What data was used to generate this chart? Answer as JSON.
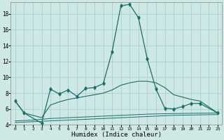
{
  "xlabel": "Humidex (Indice chaleur)",
  "background_color": "#cde8e5",
  "grid_color": "#aacfcc",
  "line_color": "#1a6e66",
  "x": [
    0,
    1,
    2,
    3,
    4,
    5,
    6,
    7,
    8,
    9,
    10,
    11,
    12,
    13,
    14,
    15,
    16,
    17,
    18,
    19,
    20,
    21,
    22,
    23
  ],
  "series1": [
    7.0,
    5.5,
    null,
    4.2,
    8.5,
    7.9,
    8.4,
    7.6,
    8.6,
    8.7,
    9.2,
    13.2,
    19.0,
    19.2,
    17.5,
    12.3,
    8.5,
    6.1,
    6.0,
    6.3,
    6.7,
    6.7,
    null,
    5.5
  ],
  "series2_x": [
    0,
    1,
    3,
    4,
    5,
    6,
    7,
    8,
    9,
    10,
    11,
    12,
    13,
    14,
    15,
    16,
    17,
    18,
    19,
    20,
    21,
    23
  ],
  "series2_y": [
    7.0,
    5.5,
    4.9,
    6.5,
    6.9,
    7.2,
    7.4,
    7.6,
    7.8,
    8.0,
    8.4,
    9.0,
    9.3,
    9.5,
    9.5,
    9.3,
    8.7,
    7.8,
    7.5,
    7.2,
    7.0,
    5.5
  ],
  "series3": [
    4.5,
    4.55,
    4.6,
    4.7,
    4.8,
    4.85,
    4.9,
    4.95,
    5.0,
    5.05,
    5.1,
    5.15,
    5.2,
    5.25,
    5.3,
    5.35,
    5.38,
    5.4,
    5.42,
    5.44,
    5.46,
    5.47,
    5.48,
    5.5
  ],
  "series4": [
    4.3,
    4.35,
    4.4,
    4.45,
    4.5,
    4.55,
    4.6,
    4.65,
    4.7,
    4.75,
    4.8,
    4.85,
    4.9,
    4.95,
    5.0,
    5.05,
    5.1,
    5.15,
    5.2,
    5.22,
    5.24,
    5.26,
    5.28,
    5.3
  ],
  "ylim": [
    4,
    19.5
  ],
  "xlim": [
    -0.5,
    23.5
  ],
  "yticks": [
    4,
    6,
    8,
    10,
    12,
    14,
    16,
    18
  ],
  "xtick_labels": [
    "0",
    "1",
    "2",
    "3",
    "4",
    "5",
    "6",
    "7",
    "8",
    "9",
    "10",
    "11",
    "12",
    "13",
    "14",
    "15",
    "16",
    "17",
    "18",
    "19",
    "20",
    "21",
    "22",
    "23"
  ],
  "font_family": "monospace"
}
